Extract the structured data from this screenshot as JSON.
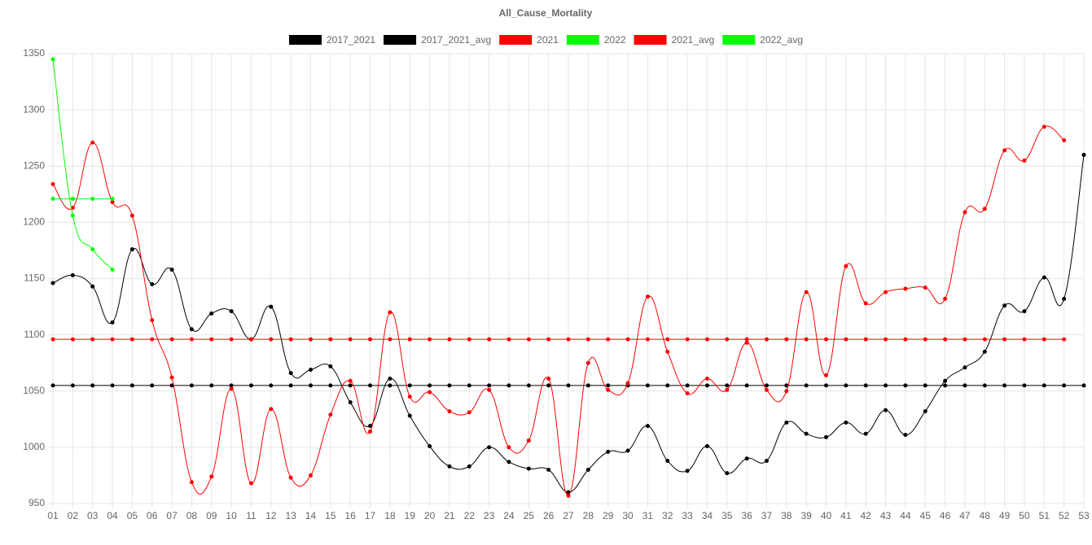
{
  "chart_data": {
    "type": "line",
    "title": "All_Cause_Mortality",
    "categories": [
      "01",
      "02",
      "03",
      "04",
      "05",
      "06",
      "07",
      "08",
      "09",
      "10",
      "11",
      "12",
      "13",
      "14",
      "15",
      "16",
      "17",
      "18",
      "19",
      "20",
      "21",
      "22",
      "23",
      "24",
      "25",
      "26",
      "27",
      "28",
      "29",
      "30",
      "31",
      "32",
      "33",
      "34",
      "35",
      "36",
      "37",
      "38",
      "39",
      "40",
      "41",
      "42",
      "43",
      "44",
      "45",
      "46",
      "47",
      "48",
      "49",
      "50",
      "51",
      "52",
      "53"
    ],
    "series": [
      {
        "name": "2017_2021",
        "color": "#000000",
        "values": [
          1146,
          1153,
          1143,
          1111,
          1176,
          1145,
          1158,
          1105,
          1119,
          1121,
          1096,
          1125,
          1066,
          1069,
          1072,
          1040,
          1019,
          1061,
          1028,
          1001,
          983,
          983,
          1000,
          987,
          981,
          980,
          960,
          980,
          996,
          997,
          1019,
          988,
          979,
          1001,
          977,
          990,
          988,
          1022,
          1012,
          1009,
          1022,
          1012,
          1033,
          1011,
          1032,
          1059,
          1071,
          1085,
          1126,
          1121,
          1151,
          1132,
          1260
        ]
      },
      {
        "name": "2017_2021_avg",
        "color": "#000000",
        "values": [
          1055,
          1055,
          1055,
          1055,
          1055,
          1055,
          1055,
          1055,
          1055,
          1055,
          1055,
          1055,
          1055,
          1055,
          1055,
          1055,
          1055,
          1055,
          1055,
          1055,
          1055,
          1055,
          1055,
          1055,
          1055,
          1055,
          1055,
          1055,
          1055,
          1055,
          1055,
          1055,
          1055,
          1055,
          1055,
          1055,
          1055,
          1055,
          1055,
          1055,
          1055,
          1055,
          1055,
          1055,
          1055,
          1055,
          1055,
          1055,
          1055,
          1055,
          1055,
          1055,
          1055
        ]
      },
      {
        "name": "2021",
        "color": "#ff0000",
        "values": [
          1234,
          1213,
          1271,
          1218,
          1206,
          1113,
          1062,
          969,
          974,
          1052,
          968,
          1034,
          973,
          975,
          1029,
          1059,
          1014,
          1120,
          1045,
          1049,
          1032,
          1031,
          1051,
          1000,
          1006,
          1061,
          957,
          1075,
          1051,
          1057,
          1134,
          1085,
          1048,
          1061,
          1051,
          1093,
          1051,
          1050,
          1138,
          1064,
          1161,
          1128,
          1138,
          1141,
          1142,
          1132,
          1209,
          1212,
          1264,
          1255,
          1285,
          1273,
          null
        ]
      },
      {
        "name": "2022",
        "color": "#00ff00",
        "values": [
          1345,
          1206,
          1176,
          1158,
          null,
          null,
          null,
          null,
          null,
          null,
          null,
          null,
          null,
          null,
          null,
          null,
          null,
          null,
          null,
          null,
          null,
          null,
          null,
          null,
          null,
          null,
          null,
          null,
          null,
          null,
          null,
          null,
          null,
          null,
          null,
          null,
          null,
          null,
          null,
          null,
          null,
          null,
          null,
          null,
          null,
          null,
          null,
          null,
          null,
          null,
          null,
          null,
          null
        ]
      },
      {
        "name": "2021_avg",
        "color": "#ff0000",
        "values": [
          1096,
          1096,
          1096,
          1096,
          1096,
          1096,
          1096,
          1096,
          1096,
          1096,
          1096,
          1096,
          1096,
          1096,
          1096,
          1096,
          1096,
          1096,
          1096,
          1096,
          1096,
          1096,
          1096,
          1096,
          1096,
          1096,
          1096,
          1096,
          1096,
          1096,
          1096,
          1096,
          1096,
          1096,
          1096,
          1096,
          1096,
          1096,
          1096,
          1096,
          1096,
          1096,
          1096,
          1096,
          1096,
          1096,
          1096,
          1096,
          1096,
          1096,
          1096,
          1096,
          null
        ]
      },
      {
        "name": "2022_avg",
        "color": "#00ff00",
        "values": [
          1221,
          1221,
          1221,
          1221,
          null,
          null,
          null,
          null,
          null,
          null,
          null,
          null,
          null,
          null,
          null,
          null,
          null,
          null,
          null,
          null,
          null,
          null,
          null,
          null,
          null,
          null,
          null,
          null,
          null,
          null,
          null,
          null,
          null,
          null,
          null,
          null,
          null,
          null,
          null,
          null,
          null,
          null,
          null,
          null,
          null,
          null,
          null,
          null,
          null,
          null,
          null,
          null,
          null
        ]
      }
    ],
    "ylim": [
      950,
      1350
    ],
    "yticks": [
      950,
      1000,
      1050,
      1100,
      1150,
      1200,
      1250,
      1300,
      1350
    ],
    "grid": true,
    "legend": "top"
  }
}
